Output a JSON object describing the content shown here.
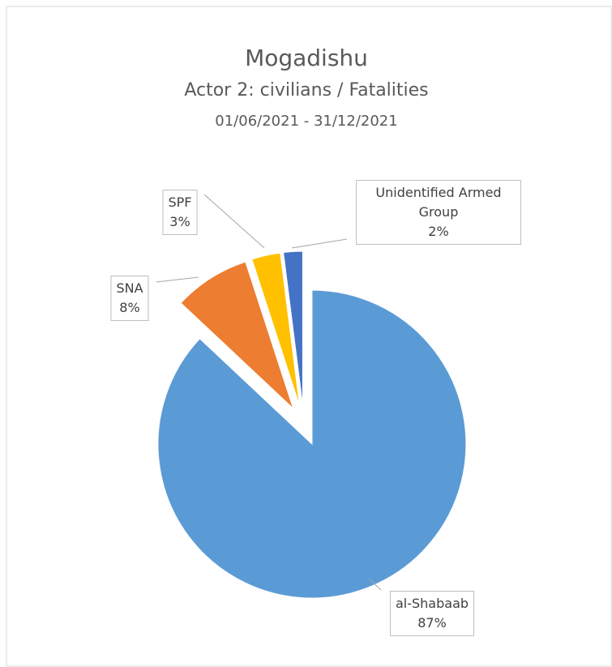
{
  "chart_data": {
    "type": "pie",
    "title": "Mogadishu",
    "subtitle": "Actor 2: civilians / Fatalities",
    "date_range": "01/06/2021 - 31/12/2021",
    "categories": [
      "al-Shabaab",
      "SNA",
      "SPF",
      "Unidentified Armed Group"
    ],
    "values": [
      87,
      8,
      3,
      2
    ],
    "value_labels": [
      "87%",
      "8%",
      "3%",
      "2%"
    ],
    "colors": [
      "#5b9bd5",
      "#ed7d31",
      "#ffc000",
      "#4472c4"
    ],
    "exploded": true
  }
}
